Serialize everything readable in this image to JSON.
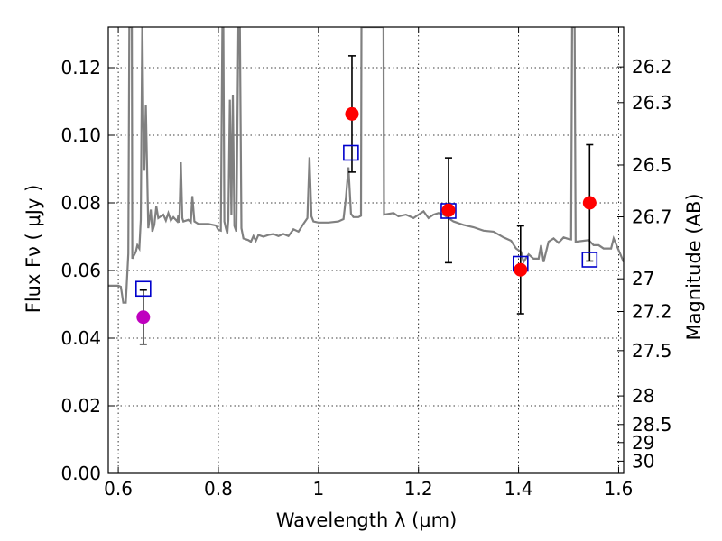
{
  "chart_data": {
    "type": "scatter",
    "xlabel": "Wavelength  λ (μm)",
    "ylabel": "Flux  Fν  ( μJy )",
    "ylabel_right": "Magnitude (AB)",
    "xlim": [
      0.58,
      1.61
    ],
    "ylim": [
      0.0,
      0.132
    ],
    "grid": true,
    "x_ticks": [
      {
        "value": 0.6,
        "label": "0.6"
      },
      {
        "value": 0.8,
        "label": "0.8"
      },
      {
        "value": 1.0,
        "label": "1"
      },
      {
        "value": 1.2,
        "label": "1.2"
      },
      {
        "value": 1.4,
        "label": "1.4"
      },
      {
        "value": 1.6,
        "label": "1.6"
      }
    ],
    "y_ticks": [
      {
        "value": 0.0,
        "label": "0.00"
      },
      {
        "value": 0.02,
        "label": "0.02"
      },
      {
        "value": 0.04,
        "label": "0.04"
      },
      {
        "value": 0.06,
        "label": "0.06"
      },
      {
        "value": 0.08,
        "label": "0.08"
      },
      {
        "value": 0.1,
        "label": "0.10"
      },
      {
        "value": 0.12,
        "label": "0.12"
      }
    ],
    "magnitude_ticks": [
      {
        "mag": 26.2,
        "label": "26.2"
      },
      {
        "mag": 26.3,
        "label": "26.3"
      },
      {
        "mag": 26.5,
        "label": "26.5"
      },
      {
        "mag": 26.7,
        "label": "26.7"
      },
      {
        "mag": 27.0,
        "label": "27"
      },
      {
        "mag": 27.2,
        "label": "27.2"
      },
      {
        "mag": 27.5,
        "label": "27.5"
      },
      {
        "mag": 28.0,
        "label": "28"
      },
      {
        "mag": 28.5,
        "label": "28.5"
      },
      {
        "mag": 29.0,
        "label": "29"
      },
      {
        "mag": 30.0,
        "label": "30"
      }
    ],
    "observed_points": [
      {
        "x": 0.65,
        "y": 0.0462,
        "yerr": 0.008,
        "color": "#bf00bf"
      },
      {
        "x": 1.067,
        "y": 0.1063,
        "yerr": 0.0172,
        "color": "#ff0000"
      },
      {
        "x": 1.26,
        "y": 0.0778,
        "yerr": 0.0155,
        "color": "#ff0000"
      },
      {
        "x": 1.404,
        "y": 0.0602,
        "yerr": 0.013,
        "color": "#ff0000"
      },
      {
        "x": 1.542,
        "y": 0.08,
        "yerr": 0.0172,
        "color": "#ff0000"
      }
    ],
    "model_points": [
      {
        "x": 0.65,
        "y": 0.0546
      },
      {
        "x": 1.065,
        "y": 0.0948
      },
      {
        "x": 1.26,
        "y": 0.0776
      },
      {
        "x": 1.404,
        "y": 0.062
      },
      {
        "x": 1.542,
        "y": 0.0632
      }
    ],
    "model_spectrum": {
      "color": "#808080",
      "points": [
        [
          0.58,
          0.0555
        ],
        [
          0.6,
          0.0555
        ],
        [
          0.605,
          0.0552
        ],
        [
          0.61,
          0.0505
        ],
        [
          0.615,
          0.0505
        ],
        [
          0.62,
          0.065
        ],
        [
          0.622,
          0.132
        ],
        [
          0.627,
          0.132
        ],
        [
          0.628,
          0.0635
        ],
        [
          0.635,
          0.0655
        ],
        [
          0.638,
          0.0675
        ],
        [
          0.642,
          0.0665
        ],
        [
          0.645,
          0.075
        ],
        [
          0.648,
          0.135
        ],
        [
          0.65,
          0.105
        ],
        [
          0.652,
          0.0895
        ],
        [
          0.655,
          0.109
        ],
        [
          0.66,
          0.0725
        ],
        [
          0.665,
          0.078
        ],
        [
          0.668,
          0.0715
        ],
        [
          0.672,
          0.0735
        ],
        [
          0.676,
          0.079
        ],
        [
          0.68,
          0.0755
        ],
        [
          0.685,
          0.076
        ],
        [
          0.69,
          0.0765
        ],
        [
          0.695,
          0.0748
        ],
        [
          0.7,
          0.077
        ],
        [
          0.705,
          0.0748
        ],
        [
          0.71,
          0.0758
        ],
        [
          0.715,
          0.075
        ],
        [
          0.718,
          0.0745
        ],
        [
          0.72,
          0.0765
        ],
        [
          0.722,
          0.0742
        ],
        [
          0.725,
          0.092
        ],
        [
          0.728,
          0.0755
        ],
        [
          0.73,
          0.0745
        ],
        [
          0.74,
          0.075
        ],
        [
          0.745,
          0.0743
        ],
        [
          0.748,
          0.082
        ],
        [
          0.752,
          0.0745
        ],
        [
          0.76,
          0.0738
        ],
        [
          0.78,
          0.0738
        ],
        [
          0.795,
          0.0733
        ],
        [
          0.8,
          0.072
        ],
        [
          0.805,
          0.0718
        ],
        [
          0.808,
          0.132
        ],
        [
          0.81,
          0.132
        ],
        [
          0.812,
          0.0745
        ],
        [
          0.815,
          0.0725
        ],
        [
          0.818,
          0.071
        ],
        [
          0.82,
          0.075
        ],
        [
          0.823,
          0.1105
        ],
        [
          0.826,
          0.0765
        ],
        [
          0.829,
          0.112
        ],
        [
          0.832,
          0.0732
        ],
        [
          0.836,
          0.0715
        ],
        [
          0.84,
          0.132
        ],
        [
          0.843,
          0.132
        ],
        [
          0.846,
          0.0725
        ],
        [
          0.85,
          0.0695
        ],
        [
          0.86,
          0.069
        ],
        [
          0.865,
          0.0685
        ],
        [
          0.87,
          0.0702
        ],
        [
          0.875,
          0.0688
        ],
        [
          0.88,
          0.0705
        ],
        [
          0.89,
          0.07
        ],
        [
          0.9,
          0.0705
        ],
        [
          0.91,
          0.0708
        ],
        [
          0.92,
          0.0702
        ],
        [
          0.93,
          0.0708
        ],
        [
          0.94,
          0.0702
        ],
        [
          0.95,
          0.0722
        ],
        [
          0.96,
          0.0715
        ],
        [
          0.97,
          0.0738
        ],
        [
          0.978,
          0.0755
        ],
        [
          0.982,
          0.0935
        ],
        [
          0.986,
          0.076
        ],
        [
          0.99,
          0.0745
        ],
        [
          1.0,
          0.0742
        ],
        [
          1.02,
          0.0742
        ],
        [
          1.04,
          0.0745
        ],
        [
          1.05,
          0.0752
        ],
        [
          1.055,
          0.0815
        ],
        [
          1.06,
          0.0905
        ],
        [
          1.065,
          0.0768
        ],
        [
          1.07,
          0.0758
        ],
        [
          1.08,
          0.0758
        ],
        [
          1.085,
          0.0762
        ],
        [
          1.086,
          0.132
        ],
        [
          1.13,
          0.132
        ],
        [
          1.131,
          0.0765
        ],
        [
          1.15,
          0.077
        ],
        [
          1.16,
          0.076
        ],
        [
          1.175,
          0.0765
        ],
        [
          1.19,
          0.0755
        ],
        [
          1.2,
          0.0765
        ],
        [
          1.21,
          0.0775
        ],
        [
          1.22,
          0.0755
        ],
        [
          1.23,
          0.0765
        ],
        [
          1.24,
          0.077
        ],
        [
          1.25,
          0.0765
        ],
        [
          1.27,
          0.0745
        ],
        [
          1.29,
          0.0735
        ],
        [
          1.31,
          0.0728
        ],
        [
          1.33,
          0.0718
        ],
        [
          1.35,
          0.0715
        ],
        [
          1.37,
          0.0698
        ],
        [
          1.385,
          0.0688
        ],
        [
          1.395,
          0.0665
        ],
        [
          1.4,
          0.066
        ],
        [
          1.405,
          0.0655
        ],
        [
          1.41,
          0.0625
        ],
        [
          1.42,
          0.0648
        ],
        [
          1.43,
          0.0635
        ],
        [
          1.44,
          0.0635
        ],
        [
          1.445,
          0.0675
        ],
        [
          1.45,
          0.0625
        ],
        [
          1.46,
          0.0685
        ],
        [
          1.47,
          0.0695
        ],
        [
          1.48,
          0.0682
        ],
        [
          1.49,
          0.0698
        ],
        [
          1.5,
          0.0693
        ],
        [
          1.505,
          0.0692
        ],
        [
          1.507,
          0.132
        ],
        [
          1.512,
          0.132
        ],
        [
          1.514,
          0.0685
        ],
        [
          1.53,
          0.0688
        ],
        [
          1.54,
          0.069
        ],
        [
          1.55,
          0.0675
        ],
        [
          1.56,
          0.0675
        ],
        [
          1.57,
          0.0665
        ],
        [
          1.585,
          0.0665
        ],
        [
          1.59,
          0.0695
        ],
        [
          1.6,
          0.066
        ],
        [
          1.61,
          0.0625
        ]
      ]
    }
  }
}
